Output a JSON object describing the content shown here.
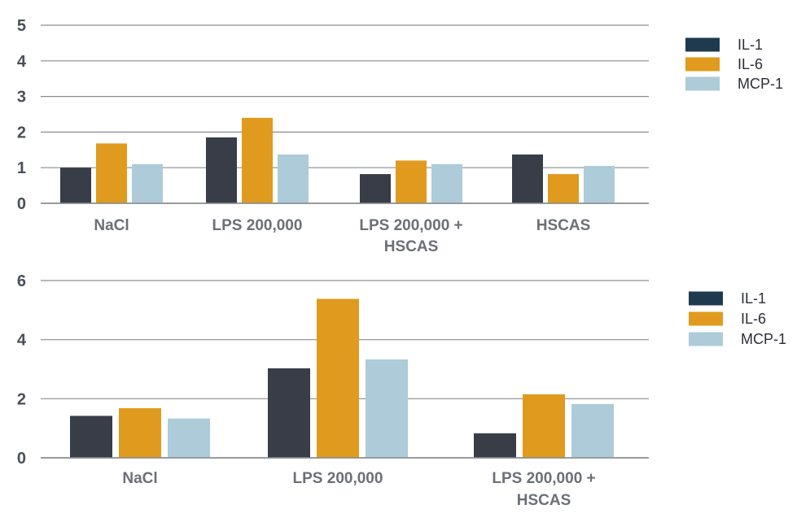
{
  "chart_data": [
    {
      "type": "bar",
      "categories": [
        [
          "NaCl"
        ],
        [
          "LPS 200,000"
        ],
        [
          "LPS 200,000 +",
          "HSCAS"
        ],
        [
          "HSCAS"
        ]
      ],
      "series": [
        {
          "name": "IL-1",
          "values": [
            1.0,
            1.85,
            0.82,
            1.37
          ]
        },
        {
          "name": "IL-6",
          "values": [
            1.68,
            2.4,
            1.2,
            0.82
          ]
        },
        {
          "name": "MCP-1",
          "values": [
            1.1,
            1.37,
            1.1,
            1.05
          ]
        }
      ],
      "yticks": [
        "0",
        "1",
        "2",
        "3",
        "4",
        "5"
      ],
      "ylim": [
        0,
        5
      ],
      "grid": true,
      "legend_position": "top-right"
    },
    {
      "type": "bar",
      "categories": [
        [
          "NaCl"
        ],
        [
          "LPS 200,000"
        ],
        [
          "LPS 200,000 +",
          "HSCAS"
        ]
      ],
      "series": [
        {
          "name": "IL-1",
          "values": [
            1.42,
            3.03,
            0.83
          ]
        },
        {
          "name": "IL-6",
          "values": [
            1.68,
            5.38,
            2.15
          ]
        },
        {
          "name": "MCP-1",
          "values": [
            1.33,
            3.33,
            1.82
          ]
        }
      ],
      "yticks": [
        "0",
        "2",
        "4",
        "6"
      ],
      "ylim": [
        0,
        6
      ],
      "grid": true,
      "legend_position": "top-right"
    }
  ],
  "colors": {
    "IL-1": "#383d48",
    "IL-6": "#e09a1d",
    "MCP-1": "#adcbd8",
    "legend_IL-1": "#1f3a4e"
  }
}
